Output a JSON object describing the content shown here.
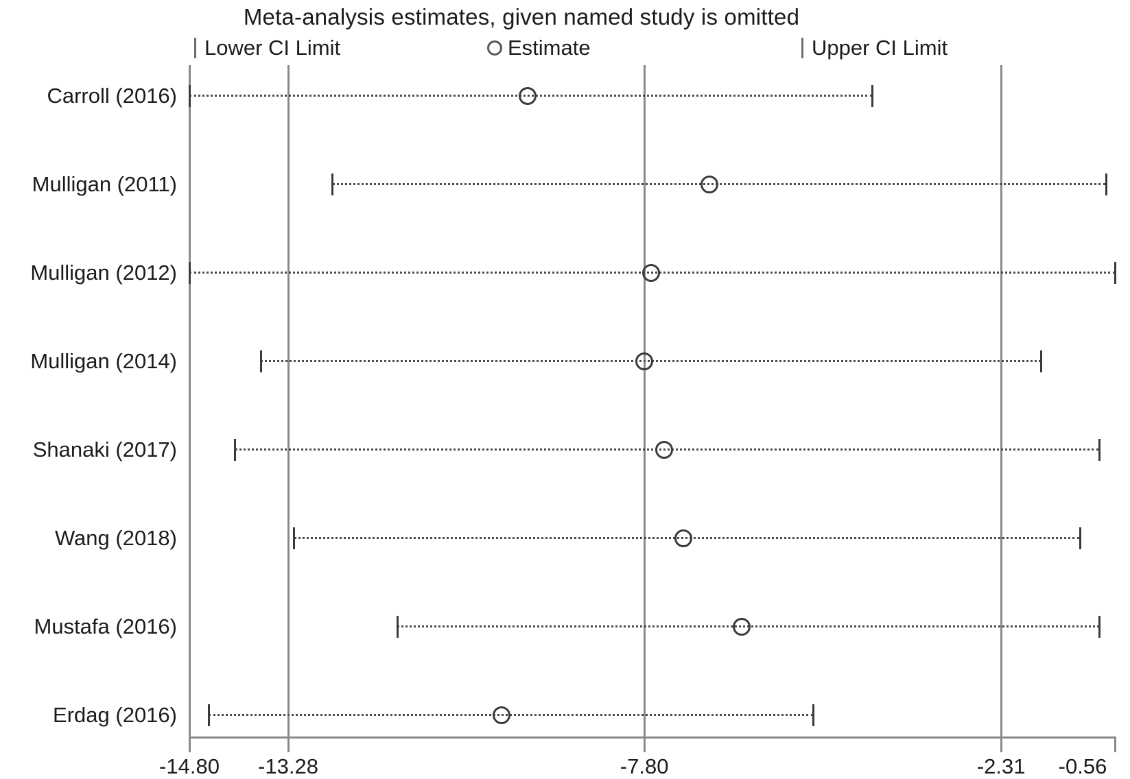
{
  "title": "Meta-analysis estimates, given named study is omitted",
  "legend": {
    "lower": "Lower CI Limit",
    "estimate": "Estimate",
    "upper": "Upper CI Limit"
  },
  "chart_data": {
    "type": "scatter",
    "subtype": "leave-one-out meta-analysis sensitivity (forest) plot",
    "title": "Meta-analysis estimates, given named study is omitted",
    "xlim": [
      -14.8,
      -0.56
    ],
    "x_ticks": [
      -14.8,
      -13.28,
      -7.8,
      -2.31,
      -0.56
    ],
    "x_tick_labels": [
      "-14.80",
      "-13.28",
      "-7.80",
      "-2.31",
      "-0.56"
    ],
    "gridlines_x": [
      -13.28,
      -7.8,
      -2.31
    ],
    "legend_entries": [
      "Lower CI Limit",
      "Estimate",
      "Upper CI Limit"
    ],
    "grid": "vertical-only",
    "legend_position": "top",
    "studies": [
      {
        "label": "Carroll (2016)",
        "lower": -14.8,
        "estimate": -9.6,
        "upper": -4.3
      },
      {
        "label": "Mulligan (2011)",
        "lower": -12.6,
        "estimate": -6.8,
        "upper": -0.7
      },
      {
        "label": "Mulligan (2012)",
        "lower": -14.8,
        "estimate": -7.7,
        "upper": -0.56
      },
      {
        "label": "Mulligan (2014)",
        "lower": -13.7,
        "estimate": -7.8,
        "upper": -1.7
      },
      {
        "label": "Shanaki (2017)",
        "lower": -14.1,
        "estimate": -7.5,
        "upper": -0.8
      },
      {
        "label": "Wang (2018)",
        "lower": -13.2,
        "estimate": -7.2,
        "upper": -1.1
      },
      {
        "label": "Mustafa (2016)",
        "lower": -11.6,
        "estimate": -6.3,
        "upper": -0.8
      },
      {
        "label": "Erdag (2016)",
        "lower": -14.5,
        "estimate": -10.0,
        "upper": -5.2
      }
    ]
  },
  "colors": {
    "text": "#1c1c1c",
    "axis": "#8a8a8a",
    "ci_line": "#4a4a4a",
    "marker": "#3a3a3a"
  }
}
